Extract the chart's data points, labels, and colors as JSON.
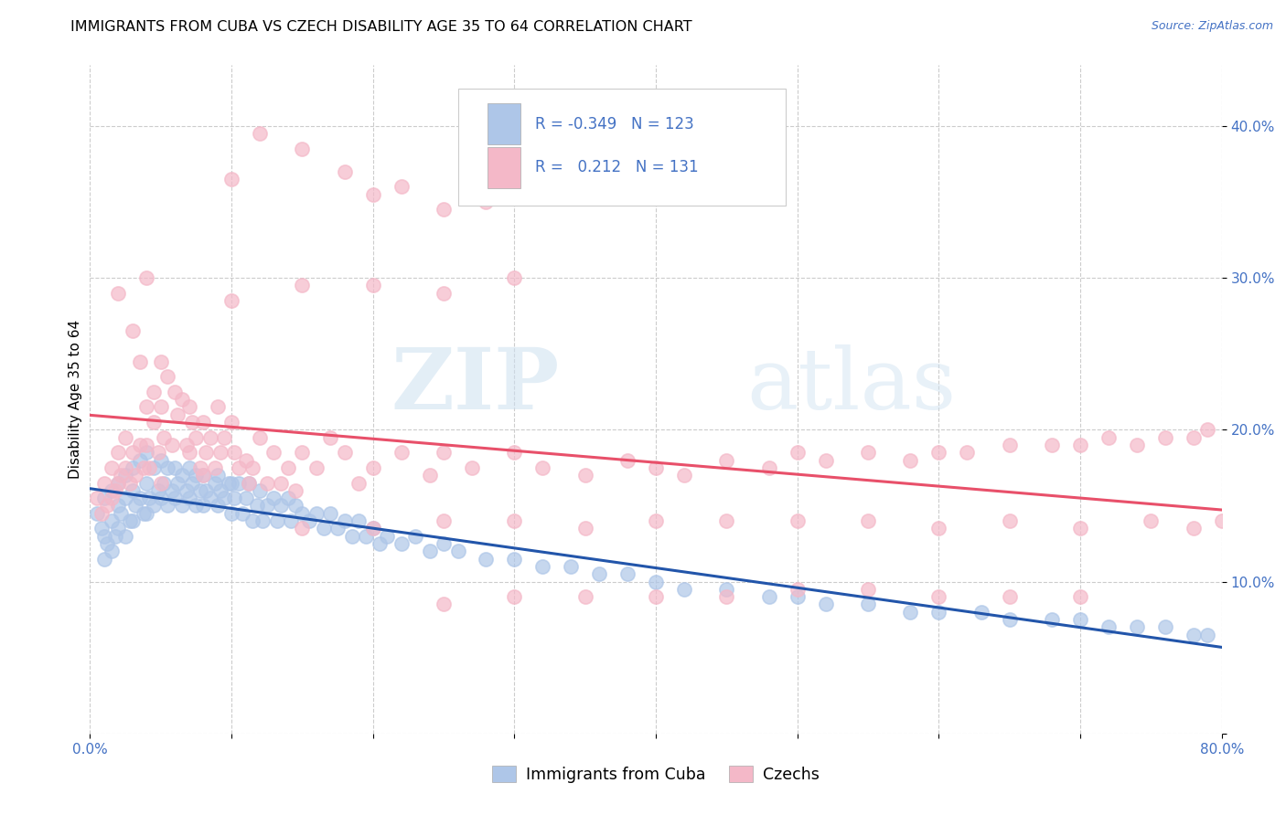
{
  "title": "IMMIGRANTS FROM CUBA VS CZECH DISABILITY AGE 35 TO 64 CORRELATION CHART",
  "source": "Source: ZipAtlas.com",
  "ylabel": "Disability Age 35 to 64",
  "xlim": [
    0.0,
    0.8
  ],
  "ylim": [
    0.0,
    0.44
  ],
  "cuba_color": "#aec6e8",
  "czech_color": "#f4b8c8",
  "cuba_line_color": "#2255aa",
  "czech_line_color": "#e8506a",
  "cuba_R": -0.349,
  "cuba_N": 123,
  "czech_R": 0.212,
  "czech_N": 131,
  "legend_label_cuba": "Immigrants from Cuba",
  "legend_label_czech": "Czechs",
  "watermark_zip": "ZIP",
  "watermark_atlas": "atlas",
  "title_fontsize": 11.5,
  "axis_label_fontsize": 11,
  "tick_fontsize": 11,
  "cuba_scatter_x": [
    0.005,
    0.008,
    0.01,
    0.01,
    0.01,
    0.012,
    0.015,
    0.015,
    0.015,
    0.018,
    0.02,
    0.02,
    0.02,
    0.022,
    0.025,
    0.025,
    0.025,
    0.028,
    0.03,
    0.03,
    0.03,
    0.032,
    0.035,
    0.035,
    0.038,
    0.04,
    0.04,
    0.04,
    0.042,
    0.045,
    0.045,
    0.048,
    0.05,
    0.05,
    0.052,
    0.055,
    0.055,
    0.058,
    0.06,
    0.06,
    0.062,
    0.065,
    0.065,
    0.068,
    0.07,
    0.07,
    0.072,
    0.075,
    0.075,
    0.078,
    0.08,
    0.08,
    0.082,
    0.085,
    0.088,
    0.09,
    0.09,
    0.092,
    0.095,
    0.098,
    0.1,
    0.1,
    0.102,
    0.105,
    0.108,
    0.11,
    0.112,
    0.115,
    0.118,
    0.12,
    0.122,
    0.125,
    0.13,
    0.132,
    0.135,
    0.14,
    0.142,
    0.145,
    0.15,
    0.155,
    0.16,
    0.165,
    0.17,
    0.175,
    0.18,
    0.185,
    0.19,
    0.195,
    0.2,
    0.205,
    0.21,
    0.22,
    0.23,
    0.24,
    0.25,
    0.26,
    0.28,
    0.3,
    0.32,
    0.34,
    0.36,
    0.38,
    0.4,
    0.42,
    0.45,
    0.48,
    0.5,
    0.52,
    0.55,
    0.58,
    0.6,
    0.63,
    0.65,
    0.68,
    0.7,
    0.72,
    0.74,
    0.76,
    0.78,
    0.79
  ],
  "cuba_scatter_y": [
    0.145,
    0.135,
    0.155,
    0.13,
    0.115,
    0.125,
    0.16,
    0.14,
    0.12,
    0.13,
    0.165,
    0.15,
    0.135,
    0.145,
    0.17,
    0.155,
    0.13,
    0.14,
    0.175,
    0.16,
    0.14,
    0.15,
    0.18,
    0.155,
    0.145,
    0.185,
    0.165,
    0.145,
    0.155,
    0.175,
    0.15,
    0.16,
    0.18,
    0.155,
    0.165,
    0.175,
    0.15,
    0.16,
    0.175,
    0.155,
    0.165,
    0.17,
    0.15,
    0.16,
    0.175,
    0.155,
    0.165,
    0.17,
    0.15,
    0.16,
    0.17,
    0.15,
    0.16,
    0.155,
    0.165,
    0.17,
    0.15,
    0.16,
    0.155,
    0.165,
    0.165,
    0.145,
    0.155,
    0.165,
    0.145,
    0.155,
    0.165,
    0.14,
    0.15,
    0.16,
    0.14,
    0.15,
    0.155,
    0.14,
    0.15,
    0.155,
    0.14,
    0.15,
    0.145,
    0.14,
    0.145,
    0.135,
    0.145,
    0.135,
    0.14,
    0.13,
    0.14,
    0.13,
    0.135,
    0.125,
    0.13,
    0.125,
    0.13,
    0.12,
    0.125,
    0.12,
    0.115,
    0.115,
    0.11,
    0.11,
    0.105,
    0.105,
    0.1,
    0.095,
    0.095,
    0.09,
    0.09,
    0.085,
    0.085,
    0.08,
    0.08,
    0.08,
    0.075,
    0.075,
    0.075,
    0.07,
    0.07,
    0.07,
    0.065,
    0.065
  ],
  "czech_scatter_x": [
    0.005,
    0.008,
    0.01,
    0.012,
    0.015,
    0.015,
    0.018,
    0.02,
    0.02,
    0.022,
    0.025,
    0.025,
    0.028,
    0.03,
    0.03,
    0.032,
    0.035,
    0.035,
    0.038,
    0.04,
    0.04,
    0.042,
    0.045,
    0.045,
    0.048,
    0.05,
    0.05,
    0.052,
    0.055,
    0.058,
    0.06,
    0.062,
    0.065,
    0.068,
    0.07,
    0.07,
    0.072,
    0.075,
    0.078,
    0.08,
    0.082,
    0.085,
    0.088,
    0.09,
    0.092,
    0.095,
    0.1,
    0.102,
    0.105,
    0.11,
    0.112,
    0.115,
    0.12,
    0.125,
    0.13,
    0.135,
    0.14,
    0.145,
    0.15,
    0.16,
    0.17,
    0.18,
    0.19,
    0.2,
    0.22,
    0.24,
    0.25,
    0.27,
    0.3,
    0.32,
    0.35,
    0.38,
    0.4,
    0.42,
    0.45,
    0.48,
    0.5,
    0.52,
    0.55,
    0.58,
    0.6,
    0.62,
    0.65,
    0.68,
    0.7,
    0.72,
    0.74,
    0.76,
    0.78,
    0.79,
    0.05,
    0.08,
    0.1,
    0.12,
    0.15,
    0.18,
    0.2,
    0.22,
    0.25,
    0.28,
    0.1,
    0.15,
    0.2,
    0.25,
    0.3,
    0.15,
    0.2,
    0.25,
    0.3,
    0.35,
    0.4,
    0.45,
    0.5,
    0.55,
    0.6,
    0.65,
    0.7,
    0.75,
    0.78,
    0.8,
    0.25,
    0.3,
    0.35,
    0.4,
    0.45,
    0.5,
    0.55,
    0.6,
    0.65,
    0.7,
    0.02,
    0.04
  ],
  "czech_scatter_y": [
    0.155,
    0.145,
    0.165,
    0.15,
    0.175,
    0.155,
    0.16,
    0.185,
    0.165,
    0.17,
    0.195,
    0.175,
    0.165,
    0.265,
    0.185,
    0.17,
    0.245,
    0.19,
    0.175,
    0.215,
    0.19,
    0.175,
    0.225,
    0.205,
    0.185,
    0.245,
    0.215,
    0.195,
    0.235,
    0.19,
    0.225,
    0.21,
    0.22,
    0.19,
    0.215,
    0.185,
    0.205,
    0.195,
    0.175,
    0.205,
    0.185,
    0.195,
    0.175,
    0.215,
    0.185,
    0.195,
    0.205,
    0.185,
    0.175,
    0.18,
    0.165,
    0.175,
    0.195,
    0.165,
    0.185,
    0.165,
    0.175,
    0.16,
    0.185,
    0.175,
    0.195,
    0.185,
    0.165,
    0.175,
    0.185,
    0.17,
    0.185,
    0.175,
    0.185,
    0.175,
    0.17,
    0.18,
    0.175,
    0.17,
    0.18,
    0.175,
    0.185,
    0.18,
    0.185,
    0.18,
    0.185,
    0.185,
    0.19,
    0.19,
    0.19,
    0.195,
    0.19,
    0.195,
    0.195,
    0.2,
    0.165,
    0.17,
    0.365,
    0.395,
    0.385,
    0.37,
    0.355,
    0.36,
    0.345,
    0.35,
    0.285,
    0.295,
    0.295,
    0.29,
    0.3,
    0.135,
    0.135,
    0.14,
    0.14,
    0.135,
    0.14,
    0.14,
    0.14,
    0.14,
    0.135,
    0.14,
    0.135,
    0.14,
    0.135,
    0.14,
    0.085,
    0.09,
    0.09,
    0.09,
    0.09,
    0.095,
    0.095,
    0.09,
    0.09,
    0.09,
    0.29,
    0.3
  ]
}
